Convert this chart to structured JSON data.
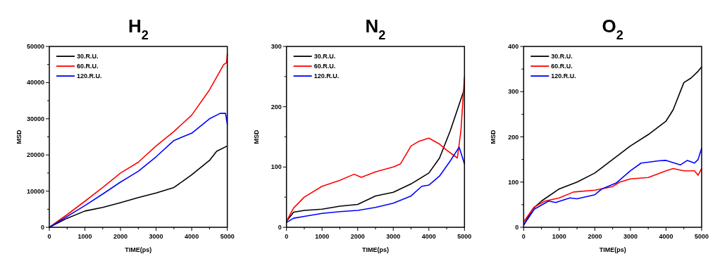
{
  "chart_data": [
    {
      "type": "line",
      "title": "H$_{2}$",
      "xlabel": "TIME(ps)",
      "ylabel": "MSD",
      "xlim": [
        0,
        5000
      ],
      "ylim": [
        0,
        50000
      ],
      "xticks": [
        0,
        {
          "value": 500,
          "label": null
        },
        1000,
        {
          "value": 1500,
          "label": null
        },
        2000,
        {
          "value": 2500,
          "label": null
        },
        3000,
        {
          "value": 3500,
          "label": null
        },
        4000,
        {
          "value": 4500,
          "label": null
        },
        5000
      ],
      "yticks": [
        0,
        {
          "value": 5000,
          "label": null
        },
        10000,
        {
          "value": 15000,
          "label": null
        },
        20000,
        {
          "value": 25000,
          "label": null
        },
        30000,
        {
          "value": 35000,
          "label": null
        },
        40000,
        {
          "value": 45000,
          "label": null
        },
        50000
      ],
      "legend": "top left",
      "grid": false,
      "series": [
        {
          "name": "30.R.U.",
          "color": "#000000",
          "x": [
            0,
            500,
            1000,
            1500,
            2000,
            2500,
            3000,
            3500,
            4000,
            4500,
            4700,
            5000
          ],
          "values": [
            0,
            2500,
            4500,
            5500,
            6800,
            8200,
            9500,
            11000,
            14500,
            18500,
            21000,
            22500
          ]
        },
        {
          "name": "60.R.U.",
          "color": "#ff0000",
          "x": [
            0,
            500,
            1000,
            1500,
            2000,
            2500,
            3000,
            3500,
            4000,
            4500,
            4900,
            4980,
            5000
          ],
          "values": [
            0,
            3500,
            7200,
            11000,
            15000,
            18000,
            22500,
            26500,
            31000,
            38000,
            45000,
            45500,
            48000
          ]
        },
        {
          "name": "120.R.U.",
          "color": "#0000ff",
          "x": [
            0,
            500,
            1000,
            1500,
            2000,
            2500,
            3000,
            3500,
            4000,
            4500,
            4800,
            4950,
            5000
          ],
          "values": [
            0,
            3000,
            6000,
            9200,
            12500,
            15500,
            19500,
            24000,
            26000,
            30000,
            31500,
            31500,
            28500
          ]
        }
      ]
    },
    {
      "type": "line",
      "title": "N$_{2}$",
      "xlabel": "TIME(ps)",
      "ylabel": "MSD",
      "xlim": [
        0,
        5000
      ],
      "ylim": [
        0,
        300
      ],
      "xticks": [
        0,
        {
          "value": 500,
          "label": null
        },
        1000,
        {
          "value": 1500,
          "label": null
        },
        2000,
        {
          "value": 2500,
          "label": null
        },
        3000,
        {
          "value": 3500,
          "label": null
        },
        4000,
        {
          "value": 4500,
          "label": null
        },
        5000
      ],
      "yticks": [
        0,
        {
          "value": 50,
          "label": null
        },
        100,
        {
          "value": 150,
          "label": null
        },
        200,
        {
          "value": 250,
          "label": null
        },
        300
      ],
      "legend": "top left",
      "grid": false,
      "series": [
        {
          "name": "30.R.U.",
          "color": "#000000",
          "x": [
            0,
            200,
            500,
            1000,
            1500,
            2000,
            2500,
            3000,
            3500,
            4000,
            4300,
            4600,
            4800,
            5000
          ],
          "values": [
            10,
            25,
            28,
            30,
            35,
            38,
            52,
            58,
            72,
            90,
            115,
            160,
            195,
            230
          ]
        },
        {
          "name": "60.R.U.",
          "color": "#ff0000",
          "x": [
            0,
            200,
            500,
            1000,
            1500,
            1900,
            2100,
            2500,
            3000,
            3200,
            3500,
            3700,
            4000,
            4300,
            4500,
            4800,
            4900,
            5000
          ],
          "values": [
            10,
            32,
            50,
            68,
            78,
            88,
            83,
            92,
            100,
            105,
            135,
            142,
            148,
            138,
            128,
            115,
            160,
            250
          ]
        },
        {
          "name": "120.R.U.",
          "color": "#0000ff",
          "x": [
            0,
            200,
            500,
            1000,
            1500,
            2000,
            2500,
            3000,
            3500,
            3800,
            4000,
            4300,
            4600,
            4850,
            5000
          ],
          "values": [
            8,
            15,
            18,
            23,
            26,
            28,
            33,
            40,
            52,
            68,
            70,
            85,
            110,
            133,
            105
          ]
        }
      ]
    },
    {
      "type": "line",
      "title": "O$_{2}$",
      "xlabel": "TIME(ps)",
      "ylabel": "MSD",
      "xlim": [
        0,
        5000
      ],
      "ylim": [
        0,
        400
      ],
      "xticks": [
        0,
        {
          "value": 500,
          "label": null
        },
        1000,
        {
          "value": 1500,
          "label": null
        },
        2000,
        {
          "value": 2500,
          "label": null
        },
        3000,
        {
          "value": 3500,
          "label": null
        },
        4000,
        {
          "value": 4500,
          "label": null
        },
        5000
      ],
      "yticks": [
        0,
        {
          "value": 50,
          "label": null
        },
        100,
        {
          "value": 150,
          "label": null
        },
        200,
        {
          "value": 250,
          "label": null
        },
        300,
        {
          "value": 350,
          "label": null
        },
        400
      ],
      "legend": "top left",
      "grid": false,
      "series": [
        {
          "name": "30.R.U.",
          "color": "#000000",
          "x": [
            0,
            250,
            500,
            1000,
            1500,
            2000,
            2500,
            3000,
            3500,
            4000,
            4200,
            4500,
            4700,
            4900,
            5000
          ],
          "values": [
            5,
            40,
            58,
            85,
            100,
            120,
            150,
            180,
            205,
            235,
            260,
            320,
            330,
            345,
            355
          ]
        },
        {
          "name": "60.R.U.",
          "color": "#ff0000",
          "x": [
            0,
            300,
            600,
            1000,
            1400,
            2000,
            2500,
            2700,
            3000,
            3500,
            4000,
            4200,
            4500,
            4800,
            4900,
            5000
          ],
          "values": [
            12,
            45,
            58,
            65,
            78,
            82,
            90,
            100,
            107,
            110,
            125,
            130,
            125,
            125,
            115,
            130
          ]
        },
        {
          "name": "120.R.U.",
          "color": "#0000ff",
          "x": [
            0,
            300,
            700,
            900,
            1300,
            1500,
            2000,
            2200,
            2600,
            3000,
            3300,
            3800,
            4000,
            4400,
            4600,
            4800,
            4900,
            5000
          ],
          "values": [
            5,
            40,
            58,
            55,
            65,
            63,
            72,
            85,
            98,
            125,
            142,
            147,
            148,
            138,
            148,
            142,
            150,
            175
          ]
        }
      ]
    }
  ]
}
